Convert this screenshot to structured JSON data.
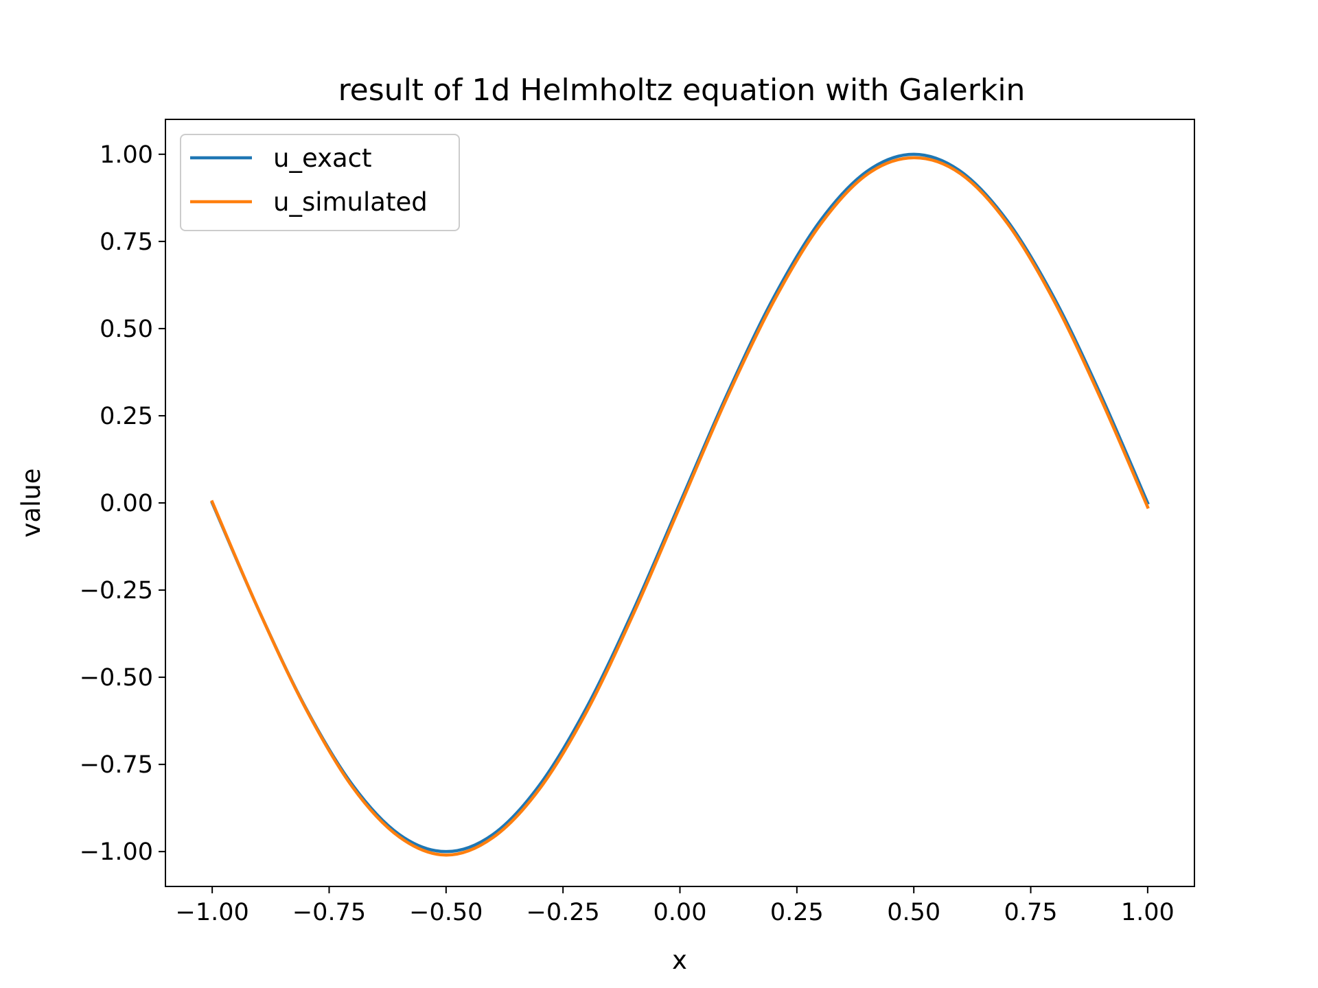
{
  "chart_data": {
    "type": "line",
    "title": "result of 1d Helmholtz equation with Galerkin",
    "xlabel": "x",
    "ylabel": "value",
    "xlim": [
      -1.1,
      1.1
    ],
    "ylim": [
      -1.1,
      1.1
    ],
    "xticks": [
      -1.0,
      -0.75,
      -0.5,
      -0.25,
      0.0,
      0.25,
      0.5,
      0.75,
      1.0
    ],
    "xtick_labels": [
      "−1.00",
      "−0.75",
      "−0.50",
      "−0.25",
      "0.00",
      "0.25",
      "0.50",
      "0.75",
      "1.00"
    ],
    "yticks": [
      1.0,
      0.75,
      0.5,
      0.25,
      0.0,
      -0.25,
      -0.5,
      -0.75,
      -1.0
    ],
    "ytick_labels": [
      "1.00",
      "0.75",
      "0.50",
      "0.25",
      "0.00",
      "−0.25",
      "−0.50",
      "−0.75",
      "−1.00"
    ],
    "grid": false,
    "legend_position": "top-left",
    "series": [
      {
        "name": "u_exact",
        "color": "#1f77b4",
        "x": [
          -1.0,
          -0.9,
          -0.8,
          -0.7,
          -0.6,
          -0.5,
          -0.4,
          -0.3,
          -0.2,
          -0.1,
          0.0,
          0.1,
          0.2,
          0.3,
          0.4,
          0.5,
          0.6,
          0.7,
          0.8,
          0.9,
          1.0
        ],
        "y": [
          0.0,
          -0.309,
          -0.588,
          -0.809,
          -0.951,
          -1.0,
          -0.951,
          -0.809,
          -0.588,
          -0.309,
          0.0,
          0.309,
          0.588,
          0.809,
          0.951,
          1.0,
          0.951,
          0.809,
          0.588,
          0.309,
          0.0
        ]
      },
      {
        "name": "u_simulated",
        "color": "#ff7f0e",
        "x": [
          -1.0,
          -0.9,
          -0.8,
          -0.7,
          -0.6,
          -0.5,
          -0.4,
          -0.3,
          -0.2,
          -0.1,
          0.0,
          0.1,
          0.2,
          0.3,
          0.4,
          0.5,
          0.6,
          0.7,
          0.8,
          0.9,
          1.0
        ],
        "y": [
          0.003,
          -0.309,
          -0.59,
          -0.815,
          -0.958,
          -1.01,
          -0.96,
          -0.82,
          -0.6,
          -0.32,
          -0.01,
          0.3,
          0.577,
          0.798,
          0.942,
          0.99,
          0.944,
          0.802,
          0.579,
          0.298,
          -0.012
        ]
      }
    ]
  }
}
